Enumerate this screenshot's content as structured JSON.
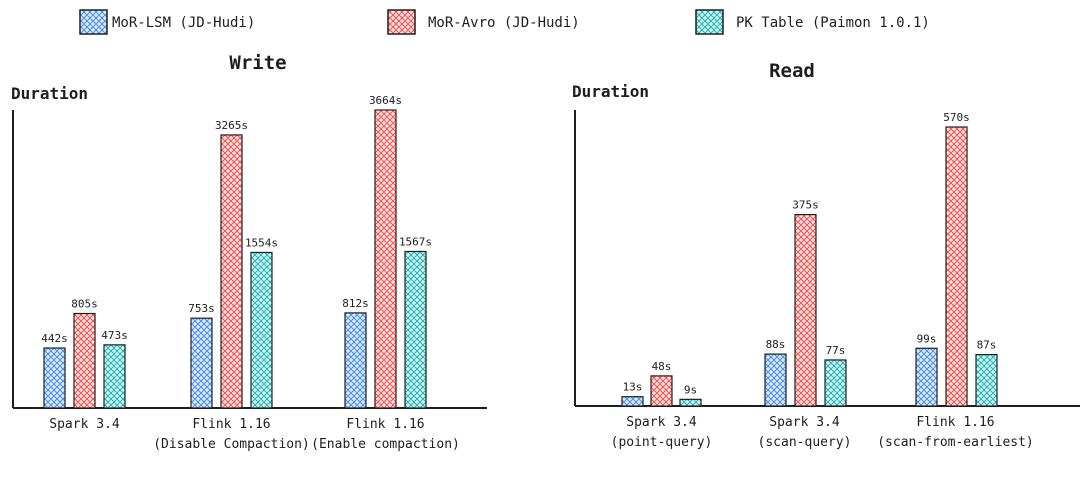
{
  "legend": [
    {
      "label": "MoR-LSM (JD-Hudi)",
      "color": "#4a90e2"
    },
    {
      "label": "MoR-Avro (JD-Hudi)",
      "color": "#f05454"
    },
    {
      "label": "PK Table (Paimon 1.0.1)",
      "color": "#1fb5b5"
    }
  ],
  "chart_data": [
    {
      "type": "bar",
      "title": "Write",
      "ylabel": "Duration",
      "xlabel": "",
      "categories": [
        [
          "Spark 3.4"
        ],
        [
          "Flink 1.16",
          "(Disable Compaction)"
        ],
        [
          "Flink 1.16",
          "(Enable compaction)"
        ]
      ],
      "series": [
        {
          "name": "MoR-LSM (JD-Hudi)",
          "values": [
            442,
            753,
            812
          ],
          "labels": [
            "442s",
            "753s",
            "812s"
          ]
        },
        {
          "name": "MoR-Avro (JD-Hudi)",
          "values": [
            805,
            3265,
            3664
          ],
          "labels": [
            "805s",
            "3265s",
            "3664s"
          ]
        },
        {
          "name": "PK Table (Paimon 1.0.1)",
          "values": [
            473,
            1554,
            1567
          ],
          "labels": [
            "473s",
            "1554s",
            "1567s"
          ]
        }
      ],
      "grid": false
    },
    {
      "type": "bar",
      "title": "Read",
      "ylabel": "Duration",
      "xlabel": "",
      "categories": [
        [
          "Spark 3.4",
          "(point-query)"
        ],
        [
          "Spark 3.4",
          "(scan-query)"
        ],
        [
          "Flink 1.16",
          "(scan-from-earliest)"
        ]
      ],
      "series": [
        {
          "name": "MoR-LSM (JD-Hudi)",
          "values": [
            13,
            88,
            99
          ],
          "labels": [
            "13s",
            "88s",
            "99s"
          ]
        },
        {
          "name": "MoR-Avro (JD-Hudi)",
          "values": [
            48,
            375,
            570
          ],
          "labels": [
            "48s",
            "375s",
            "570s"
          ]
        },
        {
          "name": "PK Table (Paimon 1.0.1)",
          "values": [
            9,
            77,
            87
          ],
          "labels": [
            "9s",
            "77s",
            "87s"
          ]
        }
      ],
      "grid": false
    }
  ]
}
